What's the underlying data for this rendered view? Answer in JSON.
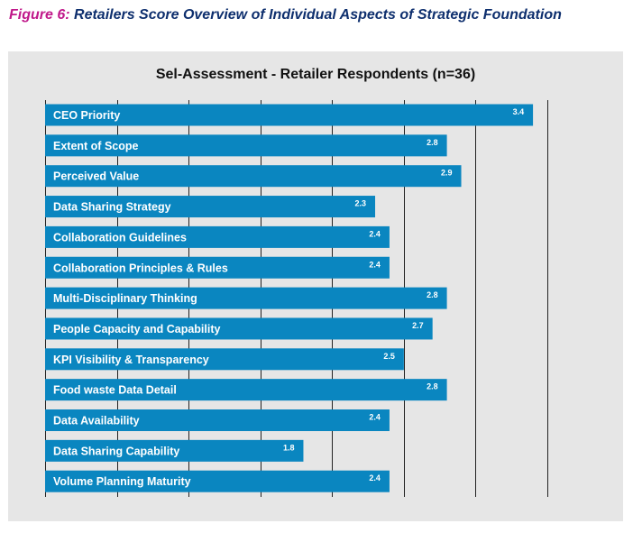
{
  "caption": {
    "prefix": "Figure 6",
    "separator": ":",
    "text": " Retailers Score Overview of Individual Aspects of Strategic Foundation"
  },
  "colors": {
    "caption_prefix": "#c0188a",
    "caption_text": "#0e2f6e",
    "bar": "#0a86c0",
    "panel_background": "#e6e6e6",
    "gridline": "#222222"
  },
  "chart_data": {
    "type": "bar",
    "orientation": "horizontal",
    "title": "Sel-Assessment - Retailer Respondents (n=36)",
    "categories": [
      "CEO Priority",
      "Extent of Scope",
      "Perceived Value",
      "Data Sharing Strategy",
      "Collaboration Guidelines",
      "Collaboration Principles & Rules",
      "Multi-Disciplinary Thinking",
      "People Capacity and Capability",
      "KPI Visibility & Transparency",
      "Food waste Data Detail",
      "Data Availability",
      "Data Sharing Capability",
      "Volume Planning Maturity"
    ],
    "values": [
      3.4,
      2.8,
      2.9,
      2.3,
      2.4,
      2.4,
      2.8,
      2.7,
      2.5,
      2.8,
      2.4,
      1.8,
      2.4
    ],
    "value_labels": [
      "3.4",
      "2.8",
      "2.9",
      "2.3",
      "2.4",
      "2.4",
      "2.8",
      "2.7",
      "2.5",
      "2.8",
      "2.4",
      "1.8",
      "2.4"
    ],
    "xlim": [
      0,
      3.5
    ],
    "gridlines": [
      0,
      0.5,
      1,
      1.5,
      2,
      2.5,
      3,
      3.5
    ],
    "grid": true,
    "legend": "none"
  }
}
